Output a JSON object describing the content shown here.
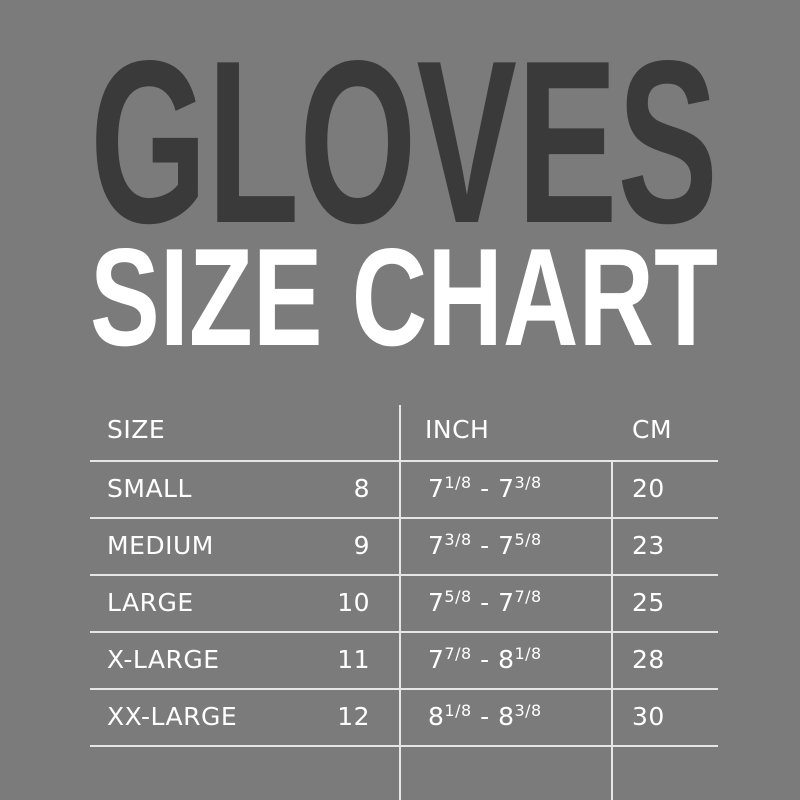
{
  "title": {
    "line1": "GLOVES",
    "line2": "SIZE CHART",
    "line1_color": "#3a3a3a",
    "line2_color": "#ffffff"
  },
  "background_color": "#7b7b7b",
  "table": {
    "headers": [
      "SIZE",
      "INCH",
      "CM"
    ],
    "rows": [
      {
        "size": "SMALL",
        "number": "8",
        "inch_from": "7",
        "inch_from_frac": "1/8",
        "inch_to": "7",
        "inch_to_frac": "3/8",
        "cm": "20"
      },
      {
        "size": "MEDIUM",
        "number": "9",
        "inch_from": "7",
        "inch_from_frac": "3/8",
        "inch_to": "7",
        "inch_to_frac": "5/8",
        "cm": "23"
      },
      {
        "size": "LARGE",
        "number": "10",
        "inch_from": "7",
        "inch_from_frac": "5/8",
        "inch_to": "7",
        "inch_to_frac": "7/8",
        "cm": "25"
      },
      {
        "size": "X-LARGE",
        "number": "11",
        "inch_from": "7",
        "inch_from_frac": "7/8",
        "inch_to": "8",
        "inch_to_frac": "1/8",
        "cm": "28"
      },
      {
        "size": "XX-LARGE",
        "number": "12",
        "inch_from": "8",
        "inch_from_frac": "1/8",
        "inch_to": "8",
        "inch_to_frac": "3/8",
        "cm": "30"
      }
    ]
  }
}
